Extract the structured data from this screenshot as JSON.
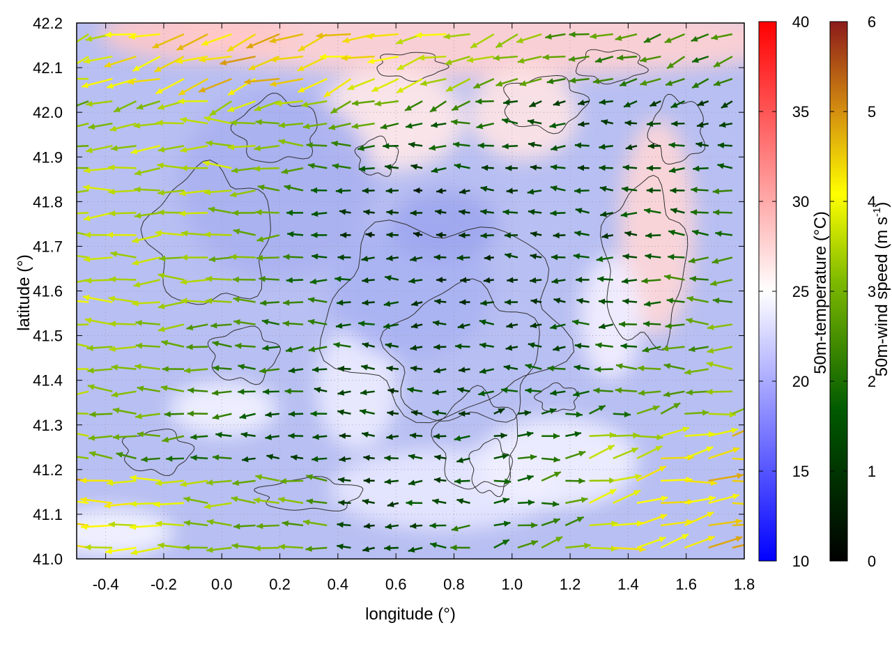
{
  "chart_data": {
    "type": "heatmap",
    "title": "",
    "xlabel": "longitude (°)",
    "ylabel": "latitude (°)",
    "xlim": [
      -0.5,
      1.8
    ],
    "ylim": [
      41.0,
      42.2
    ],
    "x_ticks": [
      "-0.4",
      "-0.2",
      "0.0",
      "0.2",
      "0.4",
      "0.6",
      "0.8",
      "1.0",
      "1.2",
      "1.4",
      "1.6",
      "1.8"
    ],
    "y_ticks": [
      "41.0",
      "41.1",
      "41.2",
      "41.3",
      "41.4",
      "41.5",
      "41.6",
      "41.7",
      "41.8",
      "41.9",
      "42.0",
      "42.1",
      "42.2"
    ],
    "grid": true,
    "temperature_colorbar": {
      "label": "50m-temperature (°C)",
      "range": [
        10,
        40
      ],
      "ticks": [
        "10",
        "15",
        "20",
        "25",
        "30",
        "35",
        "40"
      ],
      "colors": [
        "#0000ff",
        "#ffffff",
        "#ff0000"
      ]
    },
    "wind_colorbar": {
      "label_prefix": "50m-wind speed (m s",
      "label_exp": "-1",
      "label_suffix": ")",
      "range": [
        0,
        6
      ],
      "ticks": [
        "0",
        "1",
        "2",
        "3",
        "4",
        "5",
        "6"
      ],
      "colors": [
        "#000000",
        "#005a00",
        "#7fba00",
        "#ffff00",
        "#d28a10",
        "#8b1a1a"
      ]
    },
    "overlays": [
      "temperature field (colour)",
      "wind vectors (arrows)",
      "terrain contour lines"
    ]
  }
}
